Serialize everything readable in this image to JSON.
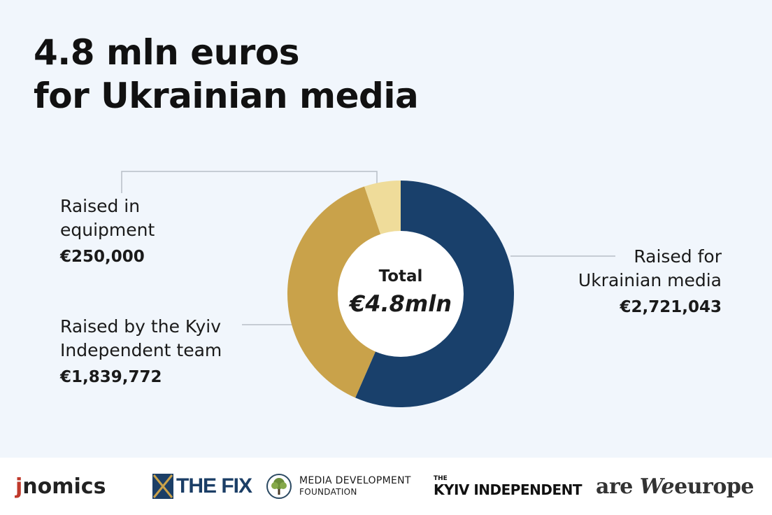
{
  "title": {
    "line1": "4.8 mln euros",
    "line2": "for Ukrainian media"
  },
  "center": {
    "label": "Total",
    "value": "€4.8mln"
  },
  "labels": {
    "equipment": {
      "line1": "Raised in",
      "line2": "equipment",
      "value": "€250,000"
    },
    "team": {
      "line1": "Raised by the Kyiv",
      "line2": "Independent team",
      "value": "€1,839,772"
    },
    "media": {
      "line1": "Raised for",
      "line2": "Ukrainian media",
      "value": "€2,721,043"
    }
  },
  "chart_data": {
    "type": "pie",
    "donut": true,
    "title": "4.8 mln euros for Ukrainian media",
    "center_label": "Total €4.8mln",
    "slices": [
      {
        "label": "Raised for Ukrainian media",
        "value": 2721043,
        "color": "#19406b"
      },
      {
        "label": "Raised by the Kyiv Independent team",
        "value": 1839772,
        "color": "#c9a24a"
      },
      {
        "label": "Raised in equipment",
        "value": 250000,
        "color": "#efdc9a"
      }
    ]
  },
  "footer": {
    "logos": [
      {
        "name": "jnomics",
        "j": "j",
        "rest": "nomics"
      },
      {
        "name": "THE FIX",
        "icon": "the-fix-x-icon"
      },
      {
        "name": "MEDIA DEVELOPMENT FOUNDATION",
        "line1": "MEDIA DEVELOPMENT",
        "line2": "FOUNDATION",
        "icon": "tree-icon"
      },
      {
        "name": "THE KYIV INDEPENDENT",
        "the": "THE",
        "main": "KYIV INDEPENDENT"
      },
      {
        "name": "are We europe",
        "pre": "are ",
        "we": "We",
        "post": "europe"
      }
    ]
  }
}
